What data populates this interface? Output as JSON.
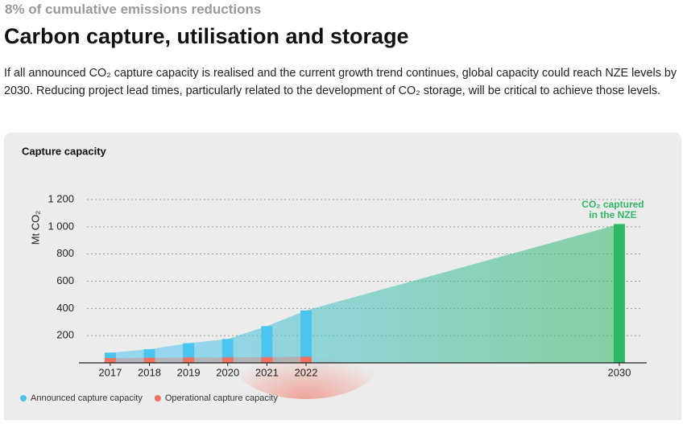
{
  "header": {
    "kicker": "8% of cumulative emissions reductions",
    "title": "Carbon capture, utilisation and storage",
    "paragraph": "If all announced CO₂ capture capacity is realised and the current growth trend continues, global capacity could reach NZE levels by 2030. Reducing project lead times, particularly related to the development of CO₂ storage, will be critical to achieve those levels."
  },
  "chart_data": {
    "type": "bar",
    "title": "Capture capacity",
    "y_label": "Mt CO₂",
    "x": [
      2017,
      2018,
      2019,
      2020,
      2021,
      2022
    ],
    "xticks": [
      2017,
      2018,
      2019,
      2020,
      2021,
      2022,
      2030
    ],
    "xlim": [
      2016.2,
      2030.7
    ],
    "ylim": [
      0,
      1200
    ],
    "yticks": [
      200,
      400,
      600,
      800,
      {
        "value": 1000,
        "label": "1 000"
      },
      {
        "value": 1200,
        "label": "1 200"
      }
    ],
    "grid": true,
    "series": [
      {
        "name": "Announced capture capacity",
        "color": "#4cc4f0",
        "values": [
          75,
          100,
          145,
          175,
          270,
          385
        ]
      },
      {
        "name": "Operational capture capacity",
        "color": "#f07362",
        "values": [
          35,
          38,
          40,
          40,
          42,
          45
        ]
      }
    ],
    "nze": {
      "x": 2030,
      "value": 1020,
      "color": "#2fb864"
    },
    "annotation": [
      "CO₂ captured",
      "in the NZE"
    ],
    "legend": "bottom-left"
  }
}
